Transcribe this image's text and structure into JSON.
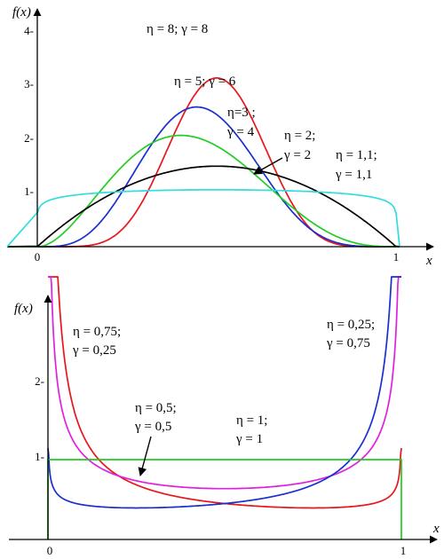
{
  "chart_data": [
    {
      "type": "line",
      "ylabel": "f(x)",
      "xlabel": "x",
      "xlim": [
        0,
        1
      ],
      "ylim": [
        0,
        4.2
      ],
      "xticks": [
        "0",
        "1"
      ],
      "yticks": [
        "1-",
        "2-",
        "3-",
        "4-"
      ],
      "series": [
        {
          "name": "η = 8;  γ = 8",
          "color": "#e8161b",
          "eta": 8,
          "gamma": 8
        },
        {
          "name": "η = 5;  γ = 6",
          "color": "#1a2fd0",
          "eta": 5,
          "gamma": 6
        },
        {
          "name": "η=3 ; γ = 4",
          "color": "#22cc22",
          "eta": 3,
          "gamma": 4
        },
        {
          "name": "η = 2; γ = 2",
          "color": "#000000",
          "eta": 2,
          "gamma": 2
        },
        {
          "name": "η = 1,1; γ = 1,1",
          "color": "#33dddd",
          "eta": 1.1,
          "gamma": 1.1
        }
      ],
      "annotations": [
        {
          "lines": [
            "η = 8;  γ = 8"
          ],
          "color": "#000000"
        },
        {
          "lines": [
            "η = 5;  γ = 6"
          ],
          "color": "#000000"
        },
        {
          "lines": [
            "η=3 ;",
            "γ = 4"
          ],
          "color": "#000000"
        },
        {
          "lines": [
            "η = 2;",
            "γ = 2"
          ],
          "color": "#000000"
        },
        {
          "lines": [
            "η = 1,1;",
            "γ = 1,1"
          ],
          "color": "#000000"
        }
      ]
    },
    {
      "type": "line",
      "ylabel": "f(x)",
      "xlabel": "x",
      "xlim": [
        0,
        1
      ],
      "ylim": [
        0,
        3.1
      ],
      "xticks": [
        "0",
        "1"
      ],
      "yticks": [
        "1-",
        "2-"
      ],
      "series": [
        {
          "name": "η = 0,25; γ = 0,75",
          "color": "#e8161b",
          "eta": 0.25,
          "gamma": 0.75
        },
        {
          "name": "η = 0,5; γ = 0,5",
          "color": "#e020e0",
          "eta": 0.5,
          "gamma": 0.5
        },
        {
          "name": "η = 0,75; γ = 0,25",
          "color": "#1a2fd0",
          "eta": 0.75,
          "gamma": 0.25
        },
        {
          "name": "η = 1; γ = 1",
          "color": "#22cc22",
          "eta": 1,
          "gamma": 1
        }
      ],
      "annotations": [
        {
          "lines": [
            "η = 0,75;",
            "γ = 0,25"
          ],
          "color": "#000000"
        },
        {
          "lines": [
            "η = 0,25;",
            "γ = 0,75"
          ],
          "color": "#000000"
        },
        {
          "lines": [
            "η = 0,5;",
            "γ = 0,5"
          ],
          "color": "#000000"
        },
        {
          "lines": [
            "η = 1;",
            "γ = 1"
          ],
          "color": "#000000"
        }
      ]
    }
  ]
}
